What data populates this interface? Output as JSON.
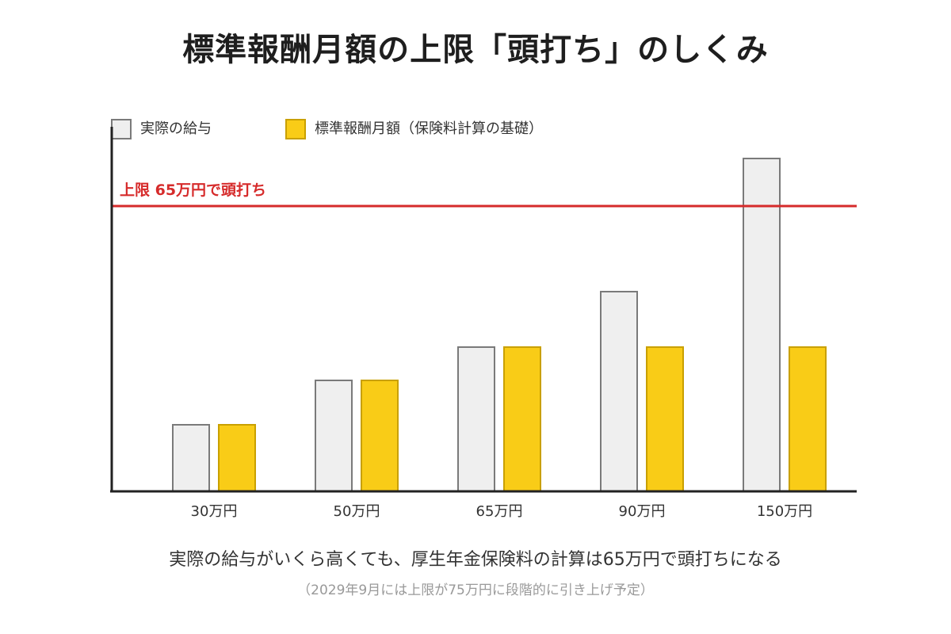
{
  "title": "標準報酬月額の上限「頭打ち」のしくみ",
  "note_main": "実際の給与がいくら高くても、厚生年金保険料の計算は65万円で頭打ちになる",
  "note_sub": "（2029年9月には上限が75万円に段階的に引き上げ予定）",
  "colors": {
    "actual_fill": "#efefef",
    "actual_stroke": "#7a7a7a",
    "standard_fill": "#f9cc17",
    "standard_stroke": "#c9a000",
    "cap_line": "#d62b2b",
    "axis": "#222222"
  },
  "chart_data": {
    "type": "bar",
    "categories": [
      "30万円",
      "50万円",
      "65万円",
      "90万円",
      "150万円"
    ],
    "series": [
      {
        "name": "実際の給与",
        "values": [
          30,
          50,
          65,
          90,
          150
        ]
      },
      {
        "name": "標準報酬月額（保険料計算の基礎）",
        "values": [
          30,
          50,
          65,
          65,
          65
        ]
      }
    ],
    "cap": {
      "value": 65,
      "label": "上限 65万円で頭打ち"
    },
    "ylim": [
      0,
      150
    ],
    "grid": false,
    "legend_position": "top-left"
  }
}
